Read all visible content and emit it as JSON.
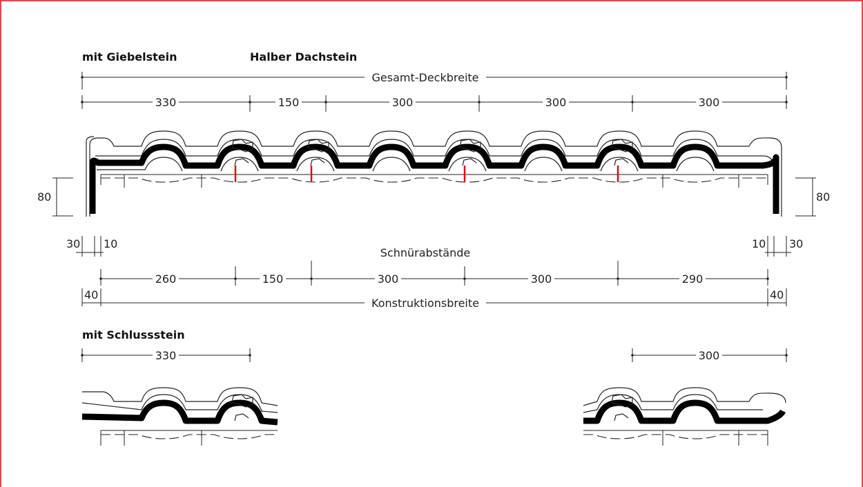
{
  "labels": {
    "gable_variant": "mit Giebelstein",
    "half_tile": "Halber Dachstein",
    "closure_variant": "mit Schlussstein",
    "total_cover_width": "Gesamt-Deckbreite",
    "line_spacing": "Schnürabstände",
    "construction_width": "Konstruktionsbreite"
  },
  "dimensions": {
    "top_row": [
      "330",
      "150",
      "300",
      "300",
      "300"
    ],
    "height_left": "80",
    "height_right": "80",
    "offset_left_30": "30",
    "offset_left_10": "10",
    "offset_right_10": "10",
    "offset_right_30": "30",
    "spacing_row": [
      "260",
      "150",
      "300",
      "300",
      "290"
    ],
    "construction_left": "40",
    "construction_right": "40",
    "closure_left": "330",
    "closure_right": "300"
  },
  "colors": {
    "frame": "#e0474c",
    "marker": "#e30613",
    "ink": "#000000"
  }
}
